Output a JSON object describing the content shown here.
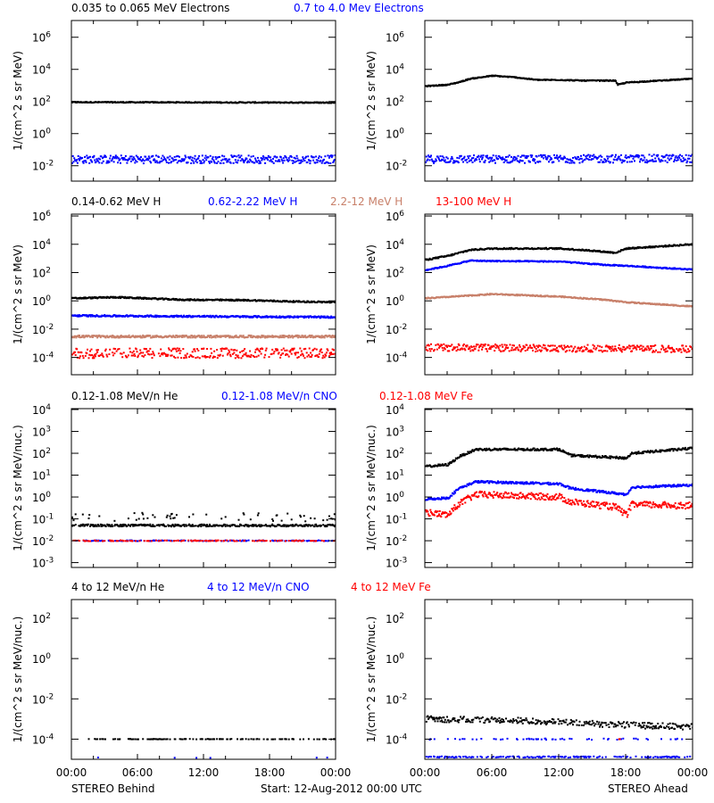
{
  "footer": {
    "left": "STEREO Behind",
    "center": "Start: 12-Aug-2012 00:00 UTC",
    "right": "STEREO Ahead"
  },
  "colors": {
    "black": "#000000",
    "blue": "#0000ff",
    "brown": "#c8806a",
    "red": "#ff0000"
  },
  "x_tick_labels": [
    "00:00",
    "06:00",
    "12:00",
    "18:00",
    "00:00"
  ],
  "chart_data": [
    {
      "type": "scatter",
      "row": 0,
      "y_scale": "log",
      "ylabel": "1/(cm^2 s sr MeV)",
      "ylim": [
        0.0011,
        11000000
      ],
      "y_tick_exponents": [
        -2,
        0,
        2,
        4,
        6
      ],
      "xlim_hours": [
        0,
        24
      ],
      "legend": [
        {
          "text": "0.035 to 0.065 MeV Electrons",
          "color": "black"
        },
        {
          "text": "0.7 to 4.0 Mev Electrons",
          "color": "blue"
        }
      ],
      "left": [
        {
          "color": "black",
          "points": [
            [
              0,
              90
            ],
            [
              24,
              85
            ]
          ],
          "noise": 0.03,
          "density": 1
        },
        {
          "color": "blue",
          "points": [
            [
              0,
              0.025
            ],
            [
              24,
              0.025
            ]
          ],
          "noise": 0.25,
          "density": 1
        }
      ],
      "right": [
        {
          "color": "black",
          "points": [
            [
              0,
              900
            ],
            [
              2,
              1100
            ],
            [
              3,
              1600
            ],
            [
              4,
              2600
            ],
            [
              6,
              4000
            ],
            [
              8,
              3200
            ],
            [
              10,
              2200
            ],
            [
              12,
              2200
            ],
            [
              14,
              2000
            ],
            [
              17,
              2000
            ],
            [
              17.2,
              1100
            ],
            [
              18,
              1500
            ],
            [
              21,
              2000
            ],
            [
              24,
              2600
            ]
          ],
          "noise": 0.03,
          "density": 1
        },
        {
          "color": "blue",
          "points": [
            [
              0,
              0.025
            ],
            [
              24,
              0.028
            ]
          ],
          "noise": 0.25,
          "density": 1
        }
      ]
    },
    {
      "type": "scatter",
      "row": 1,
      "y_scale": "log",
      "ylabel": "1/(cm^2 s sr MeV)",
      "ylim": [
        6e-06,
        1350000
      ],
      "y_tick_exponents": [
        -4,
        -2,
        0,
        2,
        4,
        6
      ],
      "xlim_hours": [
        0,
        24
      ],
      "legend": [
        {
          "text": "0.14-0.62 MeV H",
          "color": "black"
        },
        {
          "text": "0.62-2.22 MeV H",
          "color": "blue"
        },
        {
          "text": "2.2-12 MeV H",
          "color": "brown"
        },
        {
          "text": "13-100 MeV H",
          "color": "red"
        }
      ],
      "left": [
        {
          "color": "black",
          "points": [
            [
              0,
              1.5
            ],
            [
              4,
              1.8
            ],
            [
              10,
              1.2
            ],
            [
              16,
              1.1
            ],
            [
              20,
              0.9
            ],
            [
              24,
              0.8
            ]
          ],
          "noise": 0.05,
          "density": 1
        },
        {
          "color": "blue",
          "points": [
            [
              0,
              0.09
            ],
            [
              24,
              0.07
            ]
          ],
          "noise": 0.06,
          "density": 1
        },
        {
          "color": "brown",
          "points": [
            [
              0,
              0.003
            ],
            [
              24,
              0.003
            ]
          ],
          "noise": 0.08,
          "density": 1
        },
        {
          "color": "red",
          "points": [
            [
              0,
              0.0002
            ],
            [
              24,
              0.0002
            ]
          ],
          "noise": 0.35,
          "density": 0.8
        }
      ],
      "right": [
        {
          "color": "black",
          "points": [
            [
              0,
              800
            ],
            [
              2,
              1500
            ],
            [
              4,
              4000
            ],
            [
              6,
              5000
            ],
            [
              12,
              5000
            ],
            [
              15,
              3500
            ],
            [
              17,
              2500
            ],
            [
              18,
              5000
            ],
            [
              24,
              10000
            ]
          ],
          "noise": 0.05,
          "density": 1
        },
        {
          "color": "blue",
          "points": [
            [
              0,
              150
            ],
            [
              2,
              300
            ],
            [
              4,
              700
            ],
            [
              6,
              650
            ],
            [
              12,
              600
            ],
            [
              16,
              350
            ],
            [
              18,
              300
            ],
            [
              24,
              160
            ]
          ],
          "noise": 0.04,
          "density": 1
        },
        {
          "color": "brown",
          "points": [
            [
              0,
              1.5
            ],
            [
              6,
              3
            ],
            [
              12,
              2
            ],
            [
              16,
              1.2
            ],
            [
              18,
              0.8
            ],
            [
              24,
              0.4
            ]
          ],
          "noise": 0.04,
          "density": 1
        },
        {
          "color": "red",
          "points": [
            [
              0,
              0.0005
            ],
            [
              24,
              0.0004
            ]
          ],
          "noise": 0.25,
          "density": 0.9
        }
      ]
    },
    {
      "type": "scatter",
      "row": 2,
      "y_scale": "log",
      "ylabel": "1/(cm^2 s sr MeV/nuc.)",
      "ylim": [
        0.0006,
        11000
      ],
      "y_tick_exponents": [
        -3,
        -2,
        -1,
        0,
        1,
        2,
        3,
        4
      ],
      "xlim_hours": [
        0,
        24
      ],
      "legend": [
        {
          "text": "0.12-1.08 MeV/n He",
          "color": "black"
        },
        {
          "text": "0.12-1.08 MeV/n CNO",
          "color": "blue"
        },
        {
          "text": "0.12-1.08 MeV Fe",
          "color": "red"
        }
      ],
      "left": [
        {
          "color": "black",
          "points": [
            [
              0,
              0.05
            ],
            [
              24,
              0.05
            ]
          ],
          "noise": 0.05,
          "density": 0.8
        },
        {
          "color": "black",
          "points": [
            [
              0,
              0.12
            ],
            [
              24,
              0.12
            ]
          ],
          "noise": 0.2,
          "density": 0.15
        },
        {
          "color": "blue",
          "points": [
            [
              0,
              0.01
            ],
            [
              24,
              0.01
            ]
          ],
          "noise": 0.02,
          "density": 0.35
        },
        {
          "color": "red",
          "points": [
            [
              0,
              0.01
            ],
            [
              24,
              0.01
            ]
          ],
          "noise": 0.02,
          "density": 0.3
        }
      ],
      "right": [
        {
          "color": "black",
          "points": [
            [
              0,
              25
            ],
            [
              2,
              30
            ],
            [
              3,
              70
            ],
            [
              4.5,
              150
            ],
            [
              12,
              150
            ],
            [
              13,
              80
            ],
            [
              18,
              60
            ],
            [
              18.5,
              100
            ],
            [
              24,
              170
            ]
          ],
          "noise": 0.05,
          "density": 1
        },
        {
          "color": "blue",
          "points": [
            [
              0,
              0.8
            ],
            [
              2,
              0.9
            ],
            [
              3,
              2.5
            ],
            [
              4.5,
              5
            ],
            [
              12,
              4
            ],
            [
              13,
              2.5
            ],
            [
              18,
              1.3
            ],
            [
              18.5,
              2.8
            ],
            [
              24,
              3.5
            ]
          ],
          "noise": 0.05,
          "density": 1
        },
        {
          "color": "red",
          "points": [
            [
              0,
              0.2
            ],
            [
              2,
              0.15
            ],
            [
              3,
              0.5
            ],
            [
              4.5,
              1.3
            ],
            [
              12,
              1.0
            ],
            [
              13,
              0.6
            ],
            [
              17,
              0.35
            ],
            [
              18,
              0.15
            ],
            [
              18.5,
              0.45
            ],
            [
              24,
              0.4
            ]
          ],
          "noise": 0.15,
          "density": 1
        }
      ]
    },
    {
      "type": "scatter",
      "row": 3,
      "y_scale": "log",
      "ylabel": "1/(cm^2 s sr MeV/nuc.)",
      "ylim": [
        1e-05,
        850
      ],
      "y_tick_exponents": [
        -4,
        -2,
        0,
        2
      ],
      "xlim_hours": [
        0,
        24
      ],
      "legend": [
        {
          "text": "4 to 12 MeV/n He",
          "color": "black"
        },
        {
          "text": "4 to 12 MeV/n CNO",
          "color": "blue"
        },
        {
          "text": "4 to 12 MeV Fe",
          "color": "red"
        }
      ],
      "left": [
        {
          "color": "black",
          "points": [
            [
              1.5,
              0.0001
            ],
            [
              24,
              0.0001
            ]
          ],
          "noise": 0.01,
          "density": 0.3
        },
        {
          "color": "blue",
          "points": [
            [
              0,
              1.2e-05
            ],
            [
              24,
              1.2e-05
            ]
          ],
          "noise": 0.01,
          "density": 0.02
        }
      ],
      "right": [
        {
          "color": "black",
          "points": [
            [
              0,
              0.001
            ],
            [
              6,
              0.0009
            ],
            [
              12,
              0.0007
            ],
            [
              18,
              0.0005
            ],
            [
              24,
              0.0004
            ]
          ],
          "noise": 0.15,
          "density": 0.75
        },
        {
          "color": "blue",
          "points": [
            [
              0,
              0.0001
            ],
            [
              24,
              0.0001
            ]
          ],
          "noise": 0.03,
          "density": 0.12
        },
        {
          "color": "blue",
          "points": [
            [
              0,
              1.3e-05
            ],
            [
              24,
              1.3e-05
            ]
          ],
          "noise": 0.03,
          "density": 0.35
        },
        {
          "color": "red",
          "points": [
            [
              17.3,
              0.0001
            ],
            [
              17.4,
              0.0001
            ]
          ],
          "noise": 0,
          "density": 1
        }
      ]
    }
  ]
}
